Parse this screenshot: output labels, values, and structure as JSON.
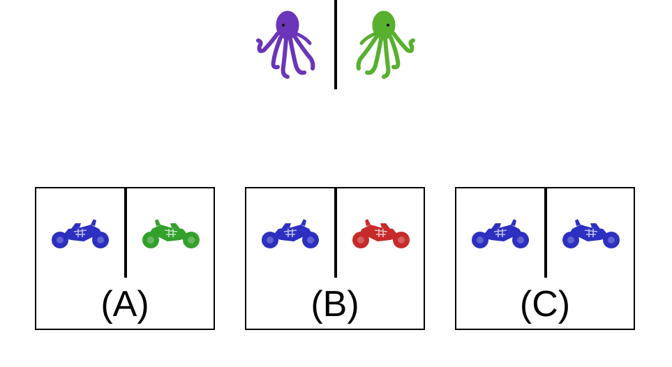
{
  "top": {
    "left_octopus": {
      "icon": "octopus-icon",
      "color": "#6a35b8"
    },
    "right_octopus": {
      "icon": "octopus-icon",
      "color": "#58b02f"
    }
  },
  "options": [
    {
      "label": "(A)",
      "left_motorcycle": {
        "icon": "motorcycle-icon",
        "color": "#2d2fc0"
      },
      "right_motorcycle": {
        "icon": "motorcycle-icon",
        "color": "#33a02c"
      }
    },
    {
      "label": "(B)",
      "left_motorcycle": {
        "icon": "motorcycle-icon",
        "color": "#2d2fc0"
      },
      "right_motorcycle": {
        "icon": "motorcycle-icon",
        "color": "#c72a2a"
      }
    },
    {
      "label": "(C)",
      "left_motorcycle": {
        "icon": "motorcycle-icon",
        "color": "#2d2fc0"
      },
      "right_motorcycle": {
        "icon": "motorcycle-icon",
        "color": "#2d2fc0"
      }
    }
  ]
}
